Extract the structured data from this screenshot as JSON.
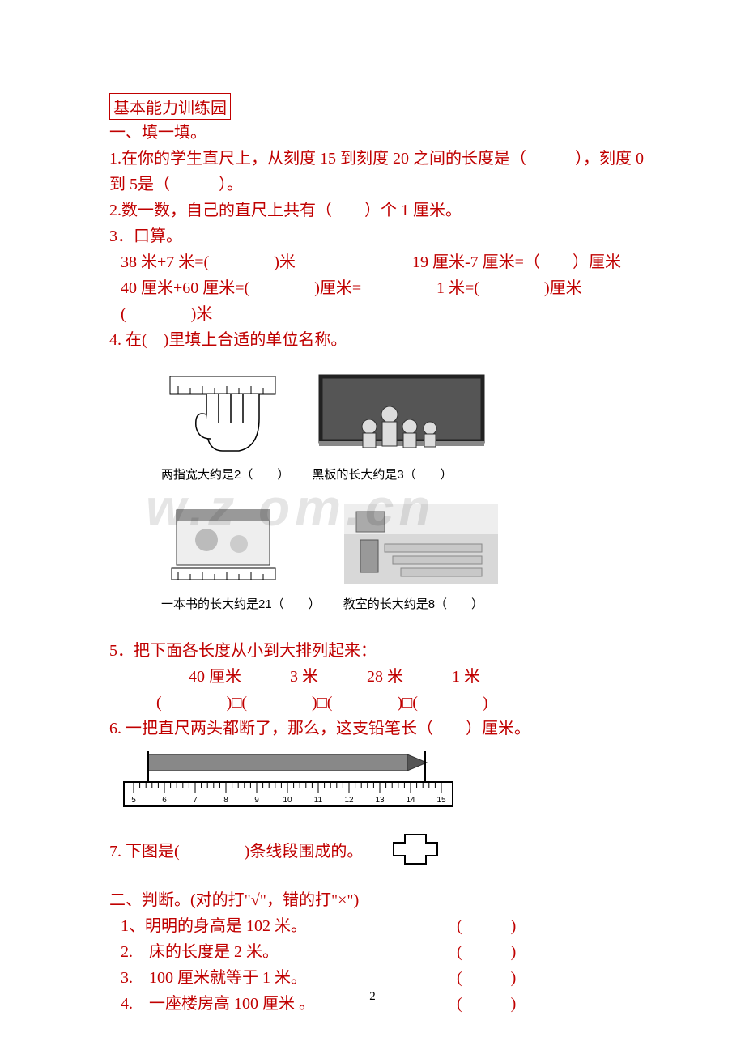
{
  "accent_color": "#c00000",
  "text_color": "#000000",
  "base_fontsize": 20,
  "caption_fontsize": 15,
  "title_box": "基本能力训练园",
  "sec1": {
    "heading": "一、填一填。",
    "q1": "1.在你的学生直尺上，从刻度 15 到刻度 20 之间的长度是（　　　），刻度 0 到 5是（　　　）。",
    "q2": "2.数一数，自己的直尺上共有（　　）个 1 厘米。",
    "q3_head": "3．口算。",
    "q3a_l": "38 米+7 米=(　　　　)米",
    "q3a_r": "19 厘米-7 厘米=（　　）厘米",
    "q3b_l": "40 厘米+60 厘米=(　　　　)厘米=(　　　　)米",
    "q3b_r": "1 米=(　　　　)厘米",
    "q4_head": "4.  在(　)里填上合适的单位名称。",
    "img_captions": {
      "fingers": "两指宽大约是2（　　）",
      "blackboard": "黑板的长大约是3（　　）",
      "book": "一本书的长大约是21（　　）",
      "classroom": "教室的长大约是8（　　）"
    },
    "q5_head": "5．把下面各长度从小到大排列起来：",
    "q5_values": "40 厘米　　　3 米　　　28 米　　　1 米",
    "q5_blanks": "(　　　　)□(　　　　)□(　　　　)□(　　　　)",
    "q6": "6.  一把直尺两头都断了，那么，这支铅笔长（　　）厘米。",
    "ruler_ticks": [
      "5",
      "6",
      "7",
      "8",
      "9",
      "10",
      "11",
      "12",
      "13",
      "14",
      "15"
    ],
    "q7_text": "7.  下图是(　　　　)条线段围成的。"
  },
  "sec2": {
    "heading": "二、判断。(对的打\"√\"，错的打\"×\")",
    "items": [
      {
        "text": "1、明明的身高是 102 米。",
        "paren": "(　　　)"
      },
      {
        "text": "2.　床的长度是 2 米。",
        "paren": "(　　　)"
      },
      {
        "text": "3.　100 厘米就等于 1 米。",
        "paren": "(　　　)"
      },
      {
        "text": "4.　一座楼房高 100 厘米 。",
        "paren": "(　　　)"
      }
    ]
  },
  "watermark": "w.z   om.cn",
  "page_number": "2"
}
